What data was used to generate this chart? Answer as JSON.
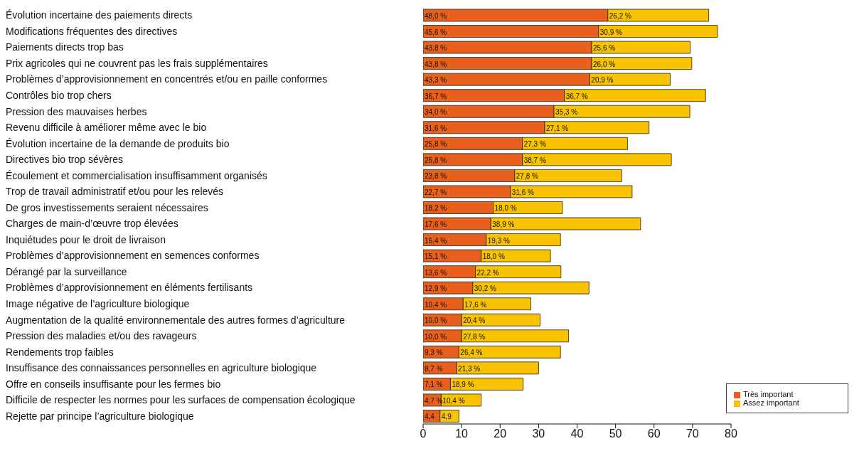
{
  "chart_data": {
    "type": "bar",
    "orientation": "horizontal",
    "stacked": true,
    "categories": [
      "Évolution incertaine des paiements directs",
      "Modifications fréquentes des directives",
      "Paiements directs trop bas",
      "Prix agricoles qui ne couvrent pas les frais supplémentaires",
      "Problèmes d’approvisionnement en concentrés et/ou en paille conformes",
      "Contrôles bio trop chers",
      "Pression des mauvaises herbes",
      "Revenu difficile à améliorer même avec le bio",
      "Évolution incertaine de la demande de produits bio",
      "Directives bio trop sévères",
      "Écoulement et commercialisation insuffisamment organisés",
      "Trop de travail administratif et/ou pour les relevés",
      "De gros investissements seraient nécessaires",
      "Charges de main-d’œuvre trop élevées",
      "Inquiétudes pour le droit de livraison",
      "Problèmes d’approvisionnement en semences conformes",
      "Dérangé par la surveillance",
      "Problèmes d’approvisionnement en éléments fertilisants",
      "Image négative de l’agriculture biologique",
      "Augmentation de la qualité environnementale des autres formes d’agriculture",
      "Pression des maladies et/ou des ravageurs",
      "Rendements trop faibles",
      "Insuffisance des connaissances personnelles en agriculture biologique",
      "Offre en conseils insuffisante pour les fermes bio",
      "Difficile de respecter les normes pour les surfaces de compensation écologique",
      "Rejette par principe l’agriculture biologique"
    ],
    "series": [
      {
        "name": "Très important",
        "color": "#e8601c",
        "values": [
          48.0,
          45.6,
          43.8,
          43.8,
          43.3,
          36.7,
          34.0,
          31.6,
          25.8,
          25.8,
          23.8,
          22.7,
          18.2,
          17.6,
          16.4,
          15.1,
          13.6,
          12.9,
          10.4,
          10.0,
          10.0,
          9.3,
          8.7,
          7.1,
          4.7,
          4.4
        ],
        "value_labels": [
          "48,0 %",
          "45,6 %",
          "43,8 %",
          "43,8 %",
          "43,3 %",
          "36,7 %",
          "34,0 %",
          "31,6 %",
          "25,8 %",
          "25,8 %",
          "23,8 %",
          "22,7 %",
          "18,2 %",
          "17,6 %",
          "16,4 %",
          "15,1 %",
          "13,6 %",
          "12,9 %",
          "10,4 %",
          "10,0 %",
          "10,0 %",
          "9,3 %",
          "8,7 %",
          "7,1 %",
          "4,7 %",
          "4,4"
        ]
      },
      {
        "name": "Assez important",
        "color": "#f9c300",
        "values": [
          26.2,
          30.9,
          25.6,
          26.0,
          20.9,
          36.7,
          35.3,
          27.1,
          27.3,
          38.7,
          27.8,
          31.6,
          18.0,
          38.9,
          19.3,
          18.0,
          22.2,
          30.2,
          17.6,
          20.4,
          27.8,
          26.4,
          21.3,
          18.9,
          10.4,
          4.9
        ],
        "value_labels": [
          "26,2 %",
          "30,9 %",
          "25,6 %",
          "26,0 %",
          "20,9 %",
          "36,7 %",
          "35,3 %",
          "27,1 %",
          "27,3 %",
          "38,7 %",
          "27,8 %",
          "31,6 %",
          "18,0 %",
          "38,9 %",
          "19,3 %",
          "18,0 %",
          "22,2 %",
          "30,2 %",
          "17,6 %",
          "20,4 %",
          "27,8 %",
          "26,4 %",
          "21,3 %",
          "18,9 %",
          "10,4 %",
          "4,9"
        ]
      }
    ],
    "xlim": [
      0,
      80
    ],
    "xticks": [
      0,
      10,
      20,
      30,
      40,
      50,
      60,
      70,
      80
    ],
    "legend": "bottom right"
  }
}
